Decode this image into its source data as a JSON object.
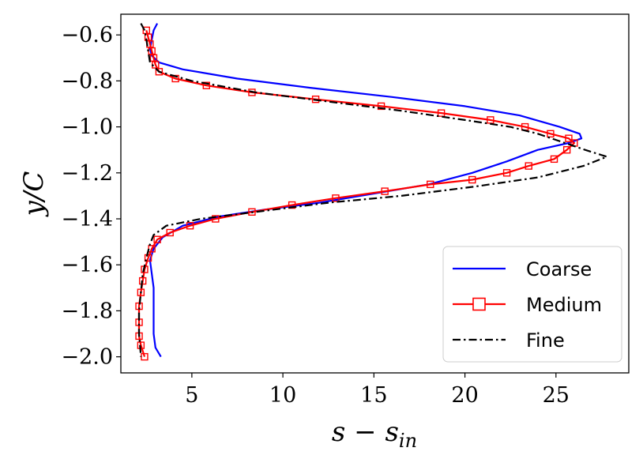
{
  "chart_data": {
    "type": "line",
    "title": "",
    "xlabel": "s − s_in",
    "ylabel": "y/C",
    "xlim": [
      1.1,
      29.0
    ],
    "ylim": [
      -2.07,
      -0.51
    ],
    "x_ticks": [
      5,
      10,
      15,
      20,
      25
    ],
    "x_tick_labels": [
      "5",
      "10",
      "15",
      "20",
      "25"
    ],
    "y_ticks": [
      -0.6,
      -0.8,
      -1.0,
      -1.2,
      -1.4,
      -1.6,
      -1.8,
      -2.0
    ],
    "y_tick_labels": [
      "−0.6",
      "−0.8",
      "−1.0",
      "−1.2",
      "−1.4",
      "−1.6",
      "−1.8",
      "−2.0"
    ],
    "grid": false,
    "legend_position": "lower-right",
    "series": [
      {
        "name": "Coarse",
        "color": "#0000ff",
        "style": "solid",
        "marker": "none",
        "points": [
          [
            3.1,
            -0.55
          ],
          [
            2.9,
            -0.58
          ],
          [
            2.8,
            -0.62
          ],
          [
            2.7,
            -0.66
          ],
          [
            2.8,
            -0.69
          ],
          [
            3.2,
            -0.72
          ],
          [
            4.5,
            -0.75
          ],
          [
            7.5,
            -0.79
          ],
          [
            11.5,
            -0.83
          ],
          [
            16.0,
            -0.87
          ],
          [
            20.0,
            -0.91
          ],
          [
            23.0,
            -0.95
          ],
          [
            25.2,
            -1.0
          ],
          [
            26.3,
            -1.03
          ],
          [
            26.4,
            -1.05
          ],
          [
            25.7,
            -1.07
          ],
          [
            24.0,
            -1.1
          ],
          [
            22.3,
            -1.15
          ],
          [
            20.4,
            -1.2
          ],
          [
            18.0,
            -1.25
          ],
          [
            15.0,
            -1.29
          ],
          [
            12.0,
            -1.33
          ],
          [
            9.0,
            -1.36
          ],
          [
            6.5,
            -1.39
          ],
          [
            4.5,
            -1.43
          ],
          [
            3.4,
            -1.48
          ],
          [
            2.9,
            -1.53
          ],
          [
            2.7,
            -1.58
          ],
          [
            2.8,
            -1.64
          ],
          [
            2.9,
            -1.7
          ],
          [
            2.9,
            -1.8
          ],
          [
            2.9,
            -1.9
          ],
          [
            3.0,
            -1.96
          ],
          [
            3.3,
            -2.0
          ]
        ]
      },
      {
        "name": "Medium",
        "color": "#ff0000",
        "style": "solid",
        "marker": "square",
        "points": [
          [
            2.5,
            -0.58
          ],
          [
            2.6,
            -0.61
          ],
          [
            2.7,
            -0.64
          ],
          [
            2.8,
            -0.67
          ],
          [
            2.9,
            -0.7
          ],
          [
            3.0,
            -0.73
          ],
          [
            3.2,
            -0.76
          ],
          [
            4.1,
            -0.79
          ],
          [
            5.8,
            -0.82
          ],
          [
            8.3,
            -0.85
          ],
          [
            11.8,
            -0.88
          ],
          [
            15.4,
            -0.91
          ],
          [
            18.7,
            -0.94
          ],
          [
            21.4,
            -0.97
          ],
          [
            23.3,
            -1.0
          ],
          [
            24.7,
            -1.03
          ],
          [
            25.7,
            -1.05
          ],
          [
            26.0,
            -1.07
          ],
          [
            25.6,
            -1.1
          ],
          [
            24.9,
            -1.14
          ],
          [
            23.5,
            -1.17
          ],
          [
            22.3,
            -1.2
          ],
          [
            20.4,
            -1.23
          ],
          [
            18.1,
            -1.25
          ],
          [
            15.6,
            -1.28
          ],
          [
            12.9,
            -1.31
          ],
          [
            10.5,
            -1.34
          ],
          [
            8.3,
            -1.37
          ],
          [
            6.3,
            -1.4
          ],
          [
            4.9,
            -1.43
          ],
          [
            3.8,
            -1.46
          ],
          [
            3.1,
            -1.49
          ],
          [
            2.8,
            -1.53
          ],
          [
            2.6,
            -1.57
          ],
          [
            2.4,
            -1.62
          ],
          [
            2.3,
            -1.67
          ],
          [
            2.2,
            -1.72
          ],
          [
            2.1,
            -1.78
          ],
          [
            2.1,
            -1.85
          ],
          [
            2.1,
            -1.91
          ],
          [
            2.2,
            -1.95
          ],
          [
            2.4,
            -2.0
          ]
        ]
      },
      {
        "name": "Fine",
        "color": "#000000",
        "style": "dashdot",
        "marker": "none",
        "points": [
          [
            2.2,
            -0.55
          ],
          [
            2.4,
            -0.58
          ],
          [
            2.5,
            -0.62
          ],
          [
            2.6,
            -0.67
          ],
          [
            2.7,
            -0.72
          ],
          [
            3.2,
            -0.76
          ],
          [
            5.0,
            -0.8
          ],
          [
            8.5,
            -0.85
          ],
          [
            12.5,
            -0.89
          ],
          [
            16.5,
            -0.93
          ],
          [
            20.0,
            -0.97
          ],
          [
            22.5,
            -1.0
          ],
          [
            24.0,
            -1.03
          ],
          [
            25.5,
            -1.07
          ],
          [
            26.6,
            -1.1
          ],
          [
            27.8,
            -1.13
          ],
          [
            26.5,
            -1.17
          ],
          [
            24.0,
            -1.22
          ],
          [
            20.5,
            -1.26
          ],
          [
            16.5,
            -1.3
          ],
          [
            12.5,
            -1.33
          ],
          [
            8.5,
            -1.37
          ],
          [
            5.5,
            -1.4
          ],
          [
            3.6,
            -1.43
          ],
          [
            2.9,
            -1.47
          ],
          [
            2.7,
            -1.51
          ],
          [
            2.5,
            -1.57
          ],
          [
            2.3,
            -1.64
          ],
          [
            2.2,
            -1.72
          ],
          [
            2.1,
            -1.8
          ],
          [
            2.1,
            -1.9
          ],
          [
            2.2,
            -2.0
          ]
        ]
      }
    ]
  }
}
